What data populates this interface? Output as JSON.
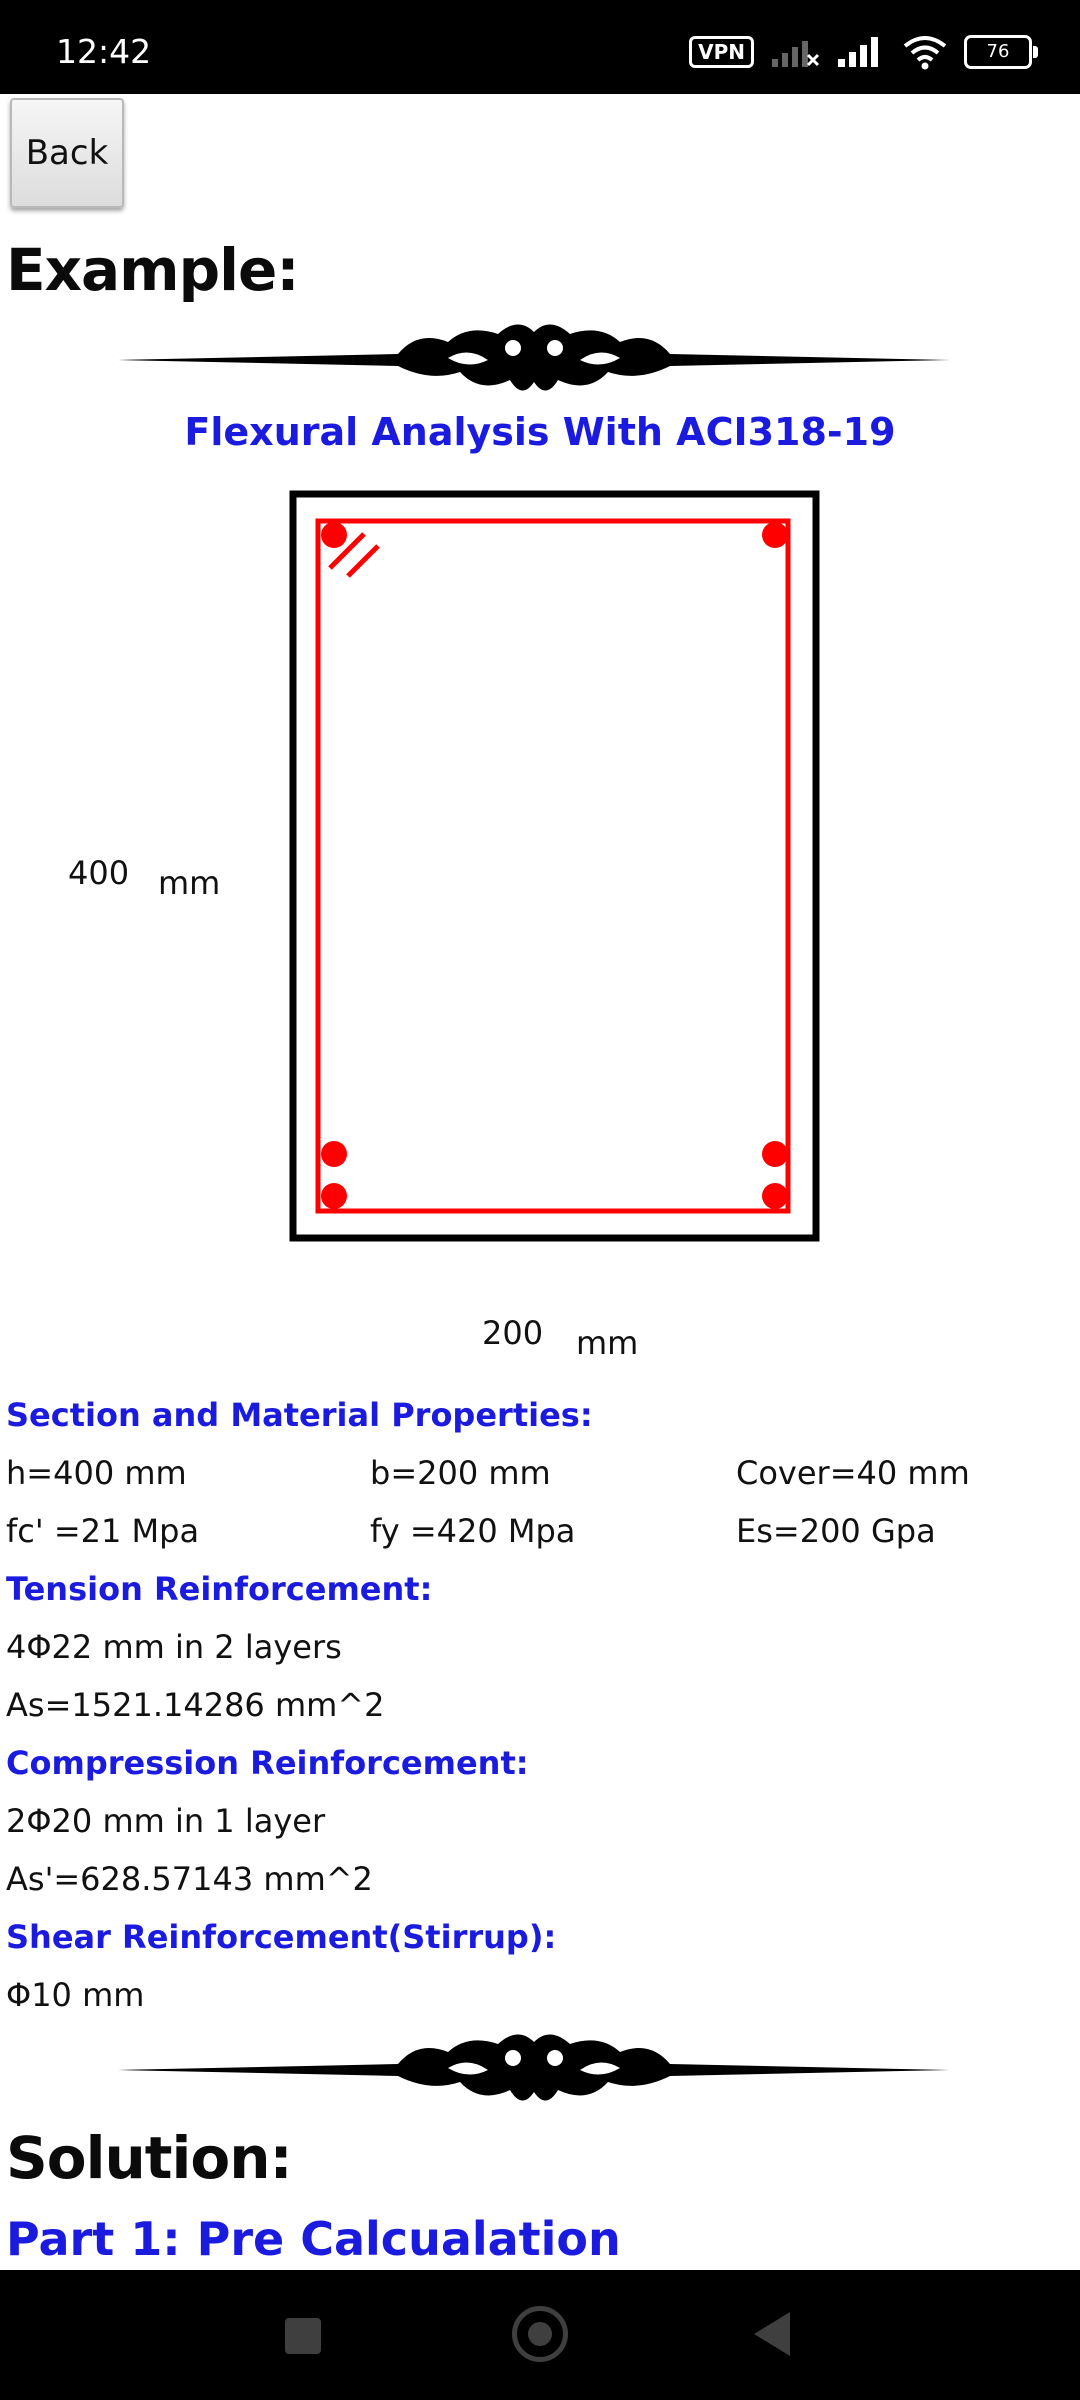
{
  "status_bar": {
    "time": "12:42",
    "vpn_label": "VPN",
    "battery": "76"
  },
  "back_button": {
    "label": "Back"
  },
  "example_heading": "Example:",
  "subtitle": "Flexural Analysis With ACI318-19",
  "figure": {
    "height_value": "400",
    "height_unit": "mm",
    "width_value": "200",
    "width_unit": "mm",
    "colors": {
      "concrete_outline": "#000000",
      "stirrup": "#ff0000",
      "bars": "#ff0000"
    }
  },
  "properties": {
    "heading": "Section and Material Properties:",
    "h": "h=400 mm",
    "b": "b=200 mm",
    "cover": "Cover=40 mm",
    "fc": "fc' =21 Mpa",
    "fy": "fy =420 Mpa",
    "es": "Es=200 Gpa"
  },
  "tension": {
    "heading": "Tension Reinforcement:",
    "bars": "4Φ22 mm in 2 layers",
    "area": "As=1521.14286 mm^2"
  },
  "compression": {
    "heading": "Compression Reinforcement:",
    "bars": "2Φ20 mm in 1 layer",
    "area": "As'=628.57143 mm^2"
  },
  "shear": {
    "heading": "Shear Reinforcement(Stirrup):",
    "bars": "Φ10 mm"
  },
  "solution_heading": "Solution:",
  "part1_title": "Part 1: Pre Calcualation",
  "accent_color": "#1b1be0"
}
